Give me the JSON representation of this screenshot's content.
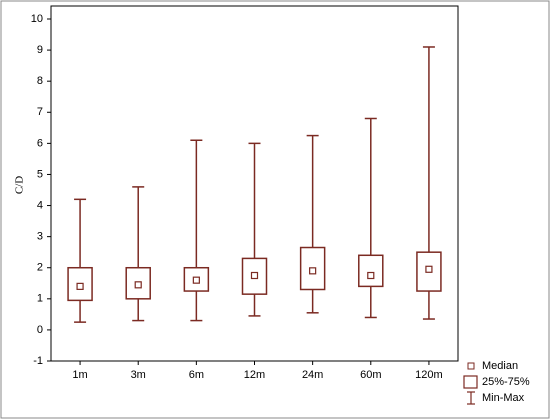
{
  "chart_data": {
    "type": "box",
    "y_label": "C/D",
    "categories": [
      "1m",
      "3m",
      "6m",
      "12m",
      "24m",
      "60m",
      "120m"
    ],
    "min": [
      0.25,
      0.3,
      0.3,
      0.45,
      0.55,
      0.4,
      0.35
    ],
    "q1": [
      0.95,
      1.0,
      1.25,
      1.15,
      1.3,
      1.4,
      1.25
    ],
    "median": [
      1.4,
      1.45,
      1.6,
      1.75,
      1.9,
      1.75,
      1.95
    ],
    "q3": [
      2.0,
      2.0,
      2.0,
      2.3,
      2.65,
      2.4,
      2.5
    ],
    "max": [
      4.2,
      4.6,
      6.1,
      6.0,
      6.25,
      6.8,
      9.1
    ],
    "legend": [
      "Median",
      "25%-75%",
      "Min-Max"
    ],
    "color": "#7b2a22",
    "ylim": [
      -1,
      10
    ],
    "yticks": [
      -1,
      0,
      1,
      2,
      3,
      4,
      5,
      6,
      7,
      8,
      9,
      10
    ]
  }
}
